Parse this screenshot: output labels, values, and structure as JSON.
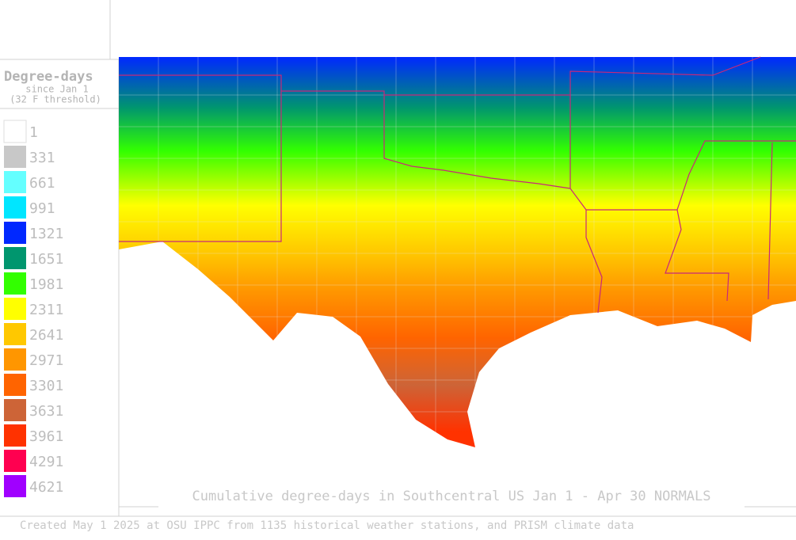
{
  "legend": {
    "title": "Degree-days",
    "subtitle": "since Jan 1",
    "threshold": "(32 F threshold)",
    "items": [
      {
        "value": 1,
        "color": "#ffffff"
      },
      {
        "value": 331,
        "color": "#c8c8c8"
      },
      {
        "value": 661,
        "color": "#64ffff"
      },
      {
        "value": 991,
        "color": "#00e6ff"
      },
      {
        "value": 1321,
        "color": "#0028ff"
      },
      {
        "value": 1651,
        "color": "#00966e"
      },
      {
        "value": 1981,
        "color": "#32ff00"
      },
      {
        "value": 2311,
        "color": "#ffff00"
      },
      {
        "value": 2641,
        "color": "#ffc800"
      },
      {
        "value": 2971,
        "color": "#ff9600"
      },
      {
        "value": 3301,
        "color": "#ff6400"
      },
      {
        "value": 3631,
        "color": "#cd6437"
      },
      {
        "value": 3961,
        "color": "#ff3200"
      },
      {
        "value": 4291,
        "color": "#ff0050"
      },
      {
        "value": 4621,
        "color": "#a000ff"
      }
    ]
  },
  "caption": "Cumulative degree-days in Southcentral US Jan 1 - Apr 30 NORMALS",
  "footer": "Created May 1 2025 at OSU IPPC from 1135 historical weather stations, and PRISM climate data"
}
